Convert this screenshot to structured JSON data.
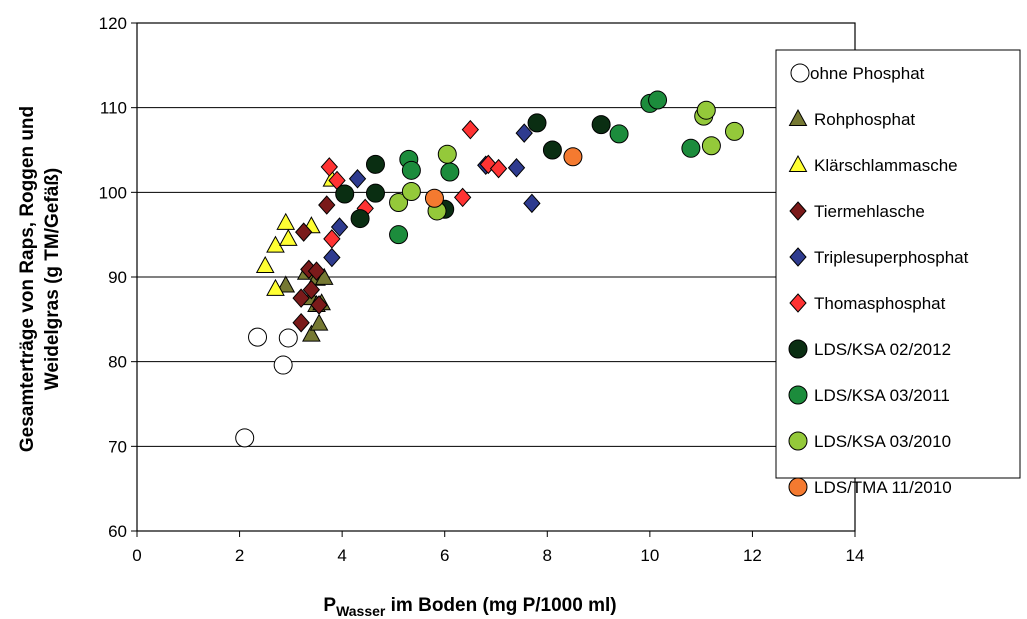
{
  "chart_data": {
    "type": "scatter",
    "xlabel": {
      "main": "P",
      "sub": "Wasser",
      "rest": " im Boden (mg P/1000 ml)"
    },
    "ylabel_line1": "Gesamterträge von Raps, Roggen und",
    "ylabel_line2": "Weidelgras (g TM/Gefäß)",
    "xlim": [
      0,
      14
    ],
    "ylim": [
      60,
      120
    ],
    "x_ticks": [
      "0",
      "2",
      "4",
      "6",
      "8",
      "10",
      "12",
      "14"
    ],
    "y_ticks": [
      "60",
      "70",
      "80",
      "90",
      "100",
      "110",
      "120"
    ],
    "grid": "horizontal",
    "legend_position": "right",
    "series": [
      {
        "name": "ohne Phosphat",
        "marker": "circle",
        "fill": "#ffffff",
        "points": [
          [
            2.1,
            71.0
          ],
          [
            2.35,
            82.9
          ],
          [
            2.85,
            79.6
          ],
          [
            2.95,
            82.8
          ]
        ]
      },
      {
        "name": "Rohphosphat",
        "marker": "triangle",
        "fill": "#767933",
        "points": [
          [
            2.9,
            89.0
          ],
          [
            3.3,
            90.5
          ],
          [
            3.4,
            87.5
          ],
          [
            3.4,
            83.2
          ],
          [
            3.5,
            89.8
          ],
          [
            3.55,
            84.5
          ],
          [
            3.5,
            86.7
          ],
          [
            3.6,
            86.9
          ],
          [
            3.65,
            89.9
          ]
        ]
      },
      {
        "name": "Klärschlammasche",
        "marker": "triangle",
        "fill": "#ffff33",
        "points": [
          [
            2.5,
            91.3
          ],
          [
            2.7,
            88.6
          ],
          [
            2.7,
            93.7
          ],
          [
            2.9,
            96.4
          ],
          [
            2.95,
            94.5
          ],
          [
            3.4,
            96.0
          ],
          [
            3.8,
            101.5
          ]
        ]
      },
      {
        "name": "Tiermehlasche",
        "marker": "diamond",
        "fill": "#7a1a1a",
        "points": [
          [
            3.2,
            84.6
          ],
          [
            3.2,
            87.5
          ],
          [
            3.25,
            95.3
          ],
          [
            3.35,
            90.9
          ],
          [
            3.4,
            88.5
          ],
          [
            3.5,
            90.7
          ],
          [
            3.55,
            86.7
          ],
          [
            3.7,
            98.5
          ]
        ]
      },
      {
        "name": "Triplesuperphosphat",
        "marker": "diamond",
        "fill": "#2e3b8f",
        "points": [
          [
            3.8,
            92.3
          ],
          [
            3.95,
            95.9
          ],
          [
            4.3,
            101.6
          ],
          [
            6.8,
            103.2
          ],
          [
            7.4,
            102.9
          ],
          [
            7.55,
            107.0
          ],
          [
            7.7,
            98.7
          ]
        ]
      },
      {
        "name": "Thomasphosphat",
        "marker": "diamond",
        "fill": "#ff3333",
        "points": [
          [
            3.75,
            103.0
          ],
          [
            3.8,
            94.5
          ],
          [
            3.9,
            101.4
          ],
          [
            4.45,
            98.1
          ],
          [
            6.35,
            99.4
          ],
          [
            6.5,
            107.4
          ],
          [
            6.85,
            103.3
          ],
          [
            7.05,
            102.8
          ]
        ]
      },
      {
        "name": "LDS/KSA 02/2012",
        "marker": "circle",
        "fill": "#0a2e12",
        "points": [
          [
            4.05,
            99.8
          ],
          [
            4.35,
            96.9
          ],
          [
            4.65,
            99.9
          ],
          [
            4.65,
            103.3
          ],
          [
            6.0,
            98.0
          ],
          [
            7.8,
            108.2
          ],
          [
            8.1,
            105.0
          ],
          [
            9.05,
            108.0
          ]
        ]
      },
      {
        "name": "LDS/KSA 03/2011",
        "marker": "circle",
        "fill": "#1c8c3c",
        "points": [
          [
            5.1,
            95.0
          ],
          [
            5.3,
            103.9
          ],
          [
            5.35,
            102.6
          ],
          [
            6.1,
            102.4
          ],
          [
            9.4,
            106.9
          ],
          [
            10.0,
            110.5
          ],
          [
            10.15,
            110.9
          ],
          [
            10.8,
            105.2
          ]
        ]
      },
      {
        "name": "LDS/KSA 03/2010",
        "marker": "circle",
        "fill": "#94c93a",
        "points": [
          [
            5.1,
            98.8
          ],
          [
            5.35,
            100.1
          ],
          [
            5.85,
            97.8
          ],
          [
            6.05,
            104.5
          ],
          [
            11.05,
            109.0
          ],
          [
            11.1,
            109.7
          ],
          [
            11.2,
            105.5
          ],
          [
            11.65,
            107.2
          ]
        ]
      },
      {
        "name": "LDS/TMA 11/2010",
        "marker": "circle",
        "fill": "#f47a30",
        "points": [
          [
            5.8,
            99.3
          ],
          [
            8.5,
            104.2
          ]
        ]
      }
    ]
  }
}
